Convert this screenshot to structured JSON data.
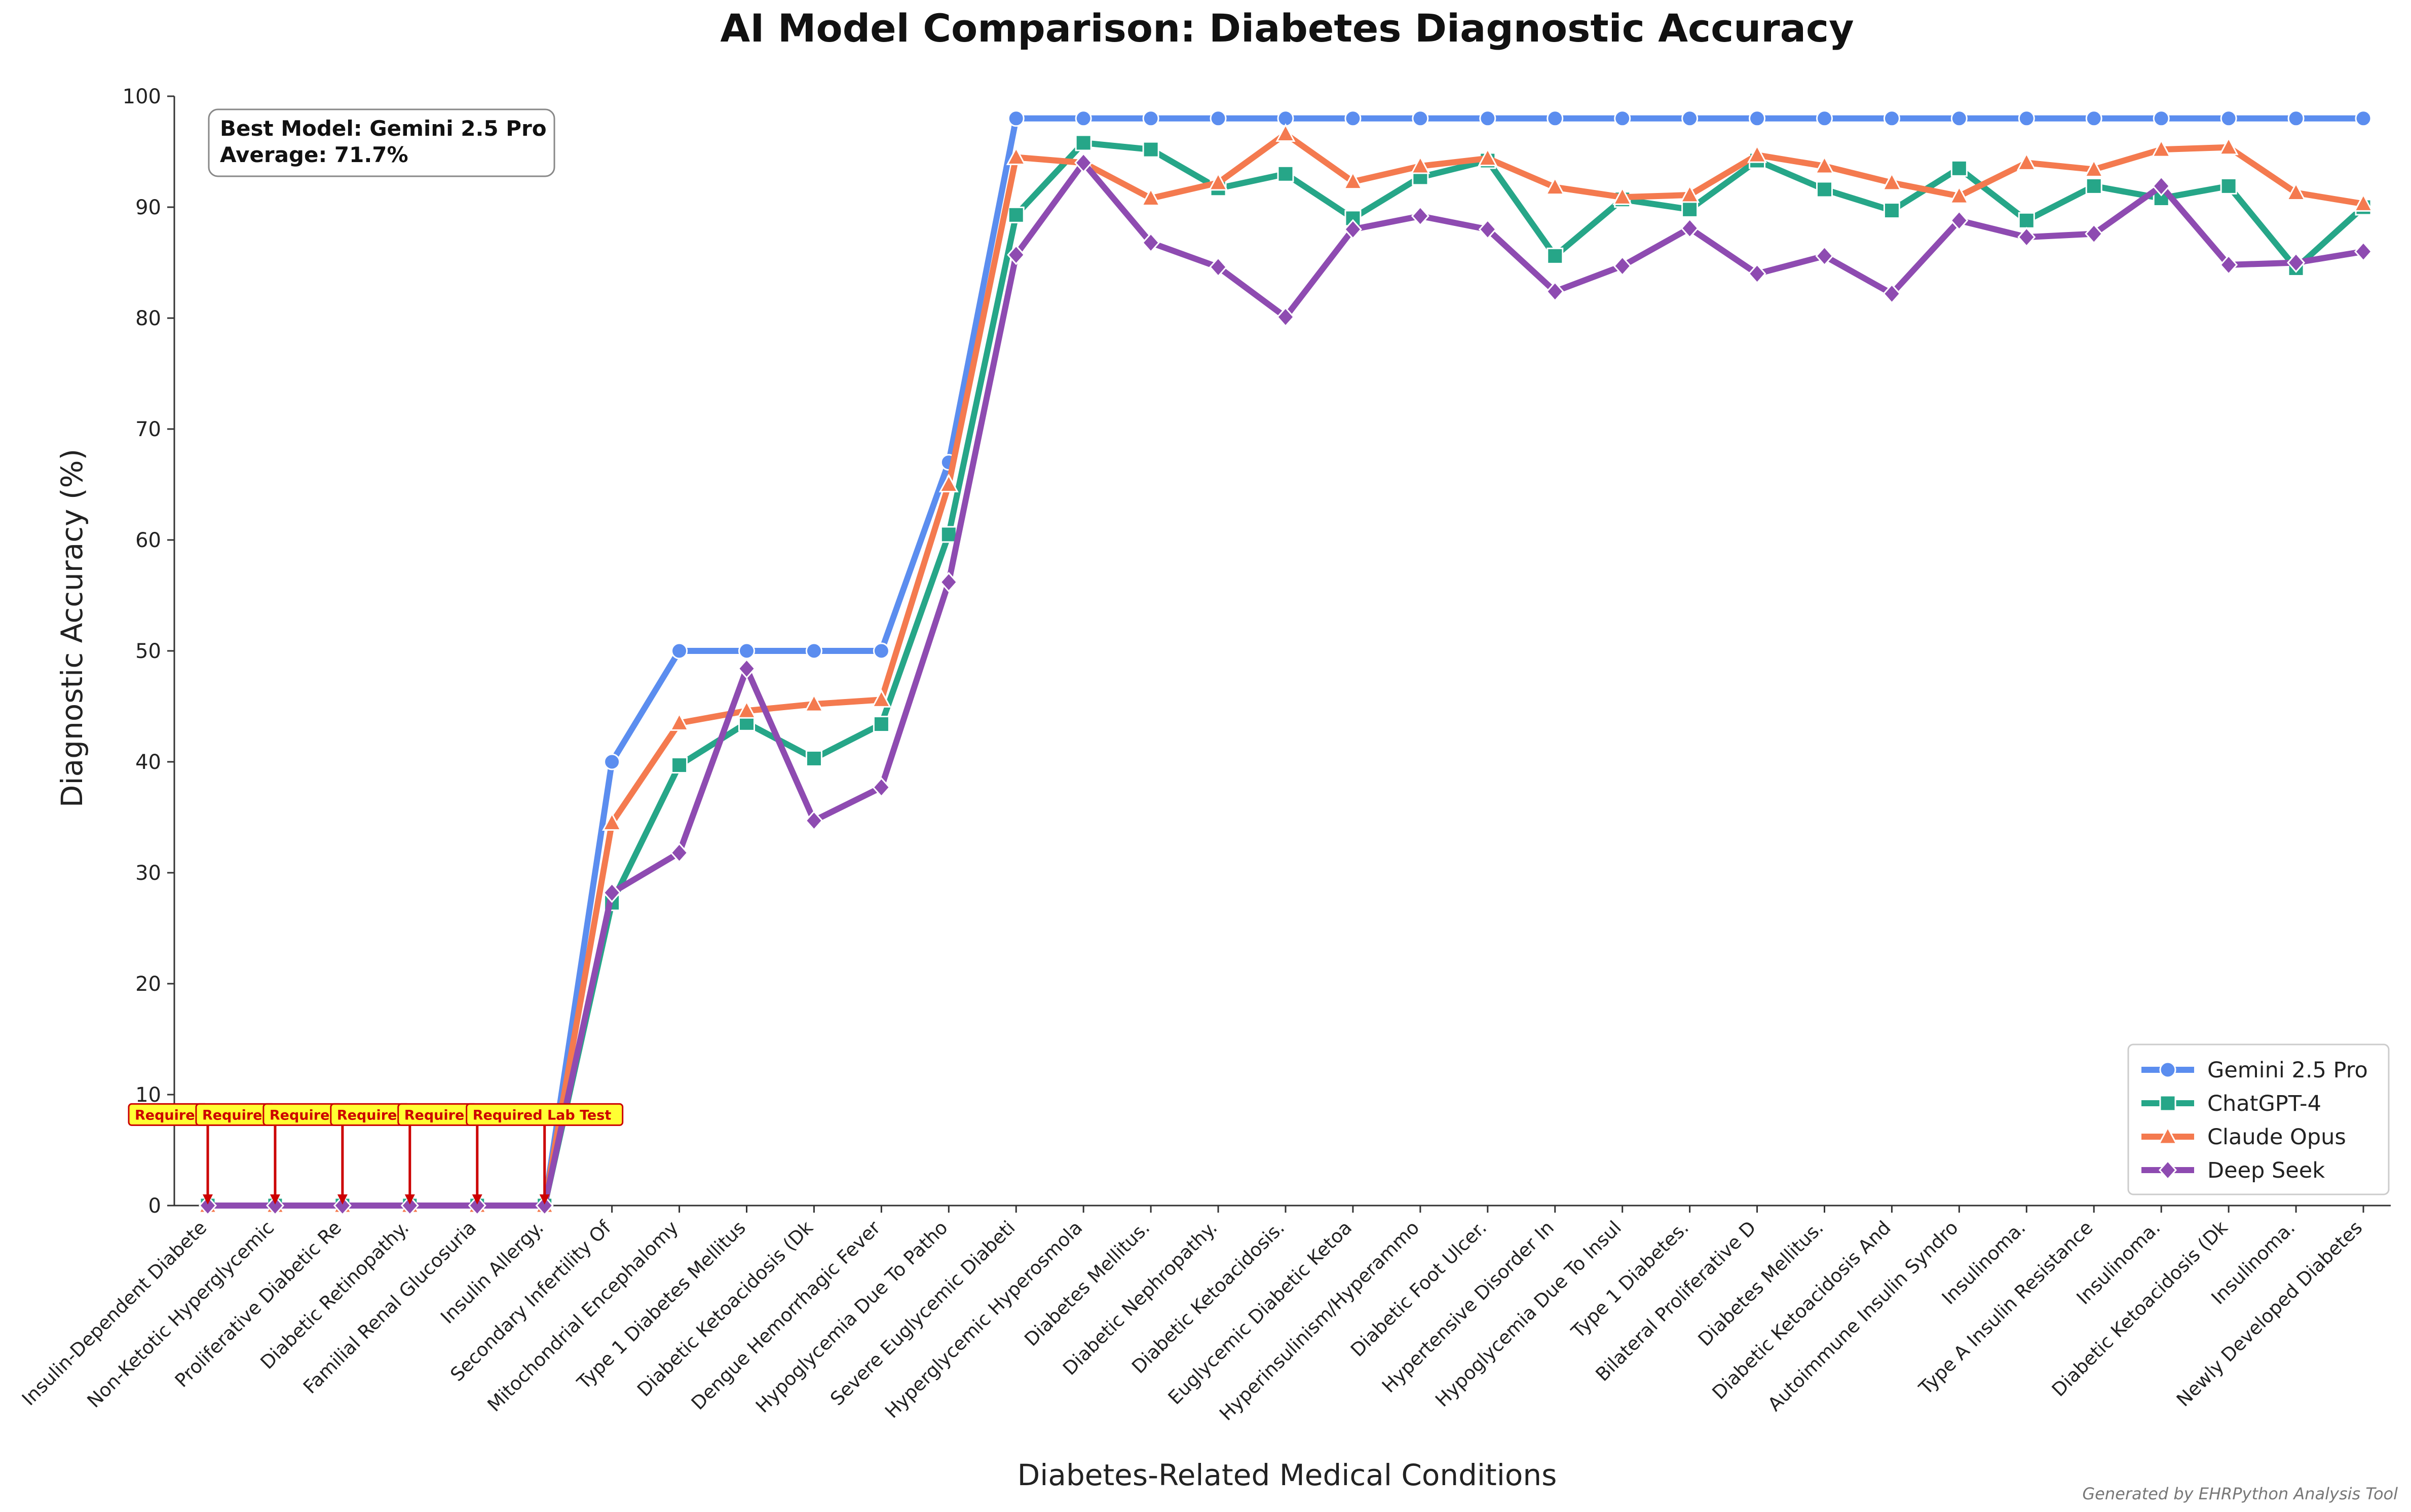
{
  "chart_data": {
    "type": "line",
    "title": "AI Model Comparison: Diabetes Diagnostic Accuracy",
    "xlabel": "Diabetes-Related Medical Conditions",
    "ylabel": "Diagnostic Accuracy (%)",
    "ylim": [
      0,
      100
    ],
    "yticks": [
      0,
      10,
      20,
      30,
      40,
      50,
      60,
      70,
      80,
      90,
      100
    ],
    "grid": false,
    "legend_position": "bottom-right",
    "categories": [
      "Insulin-Dependent Diabete",
      "Non-Ketotic Hyperglycemic",
      "Proliferative Diabetic Re",
      "Diabetic Retinopathy.",
      "Familial Renal Glucosuria",
      "Insulin Allergy.",
      "Secondary Infertility Of",
      "Mitochondrial Encephalomy",
      "Type 1 Diabetes Mellitus",
      "Diabetic Ketoacidosis (Dk",
      "Dengue Hemorrhagic Fever",
      "Hypoglycemia Due To Patho",
      "Severe Euglycemic Diabeti",
      "Hyperglycemic Hyperosmola",
      "Diabetes Mellitus.",
      "Diabetic Nephropathy.",
      "Diabetic Ketoacidosis.",
      "Euglycemic Diabetic Ketoa",
      "Hyperinsulinism/Hyperammo",
      "Diabetic Foot Ulcer.",
      "Hypertensive Disorder In",
      "Hypoglycemia Due To Insul",
      "Type 1 Diabetes.",
      "Bilateral Proliferative D",
      "Diabetes Mellitus.",
      "Diabetic Ketoacidosis And",
      "Autoimmune Insulin Syndro",
      "Insulinoma.",
      "Type A Insulin Resistance",
      "Insulinoma.",
      "Diabetic Ketoacidosis (Dk",
      "Insulinoma.",
      "Newly Developed Diabetes"
    ],
    "series": [
      {
        "name": "Gemini 2.5 Pro",
        "color": "#5b8def",
        "marker": "circle",
        "values": [
          0,
          0,
          0,
          0,
          0,
          0,
          40,
          50,
          50,
          50,
          50,
          67,
          98,
          98,
          98,
          98,
          98,
          98,
          98,
          98,
          98,
          98,
          98,
          98,
          98,
          98,
          98,
          98,
          98,
          98,
          98,
          98,
          98
        ]
      },
      {
        "name": "ChatGPT-4",
        "color": "#26a688",
        "marker": "square",
        "values": [
          0,
          0,
          0,
          0,
          0,
          0,
          27.3,
          39.7,
          43.5,
          40.3,
          43.4,
          60.5,
          89.3,
          95.8,
          95.2,
          91.7,
          93.0,
          89.0,
          92.7,
          94.2,
          85.6,
          90.7,
          89.8,
          94.2,
          91.6,
          89.7,
          93.5,
          88.8,
          91.9,
          90.8,
          91.9,
          84.5,
          90.0
        ]
      },
      {
        "name": "Claude Opus",
        "color": "#f47a4f",
        "marker": "triangle",
        "values": [
          0,
          0,
          0,
          0,
          0,
          0,
          34.5,
          43.5,
          44.6,
          45.2,
          45.6,
          65.0,
          94.5,
          94.0,
          90.8,
          92.2,
          96.6,
          92.3,
          93.7,
          94.4,
          91.8,
          90.9,
          91.1,
          94.7,
          93.7,
          92.2,
          91.0,
          94.0,
          93.4,
          95.2,
          95.4,
          91.3,
          90.3
        ]
      },
      {
        "name": "Deep Seek",
        "color": "#8e4bb1",
        "marker": "diamond",
        "values": [
          0,
          0,
          0,
          0,
          0,
          0,
          28.2,
          31.8,
          48.4,
          34.7,
          37.7,
          56.2,
          85.7,
          94.0,
          86.8,
          84.6,
          80.1,
          88.0,
          89.2,
          88.0,
          82.4,
          84.7,
          88.1,
          84.0,
          85.6,
          82.2,
          88.8,
          87.3,
          87.6,
          91.9,
          84.8,
          85.0,
          86.0
        ]
      }
    ],
    "annotations": {
      "best_model_text": "Best Model: Gemini 2.5 Pro",
      "average_text": "Average: 71.7%",
      "required_label": "Required Lab Test",
      "required_label_truncated": "Require",
      "required_count": 6,
      "required_box_color": "#ffff33",
      "required_border_color": "#cc0000",
      "footer": "Generated by EHRPython Analysis Tool"
    }
  }
}
